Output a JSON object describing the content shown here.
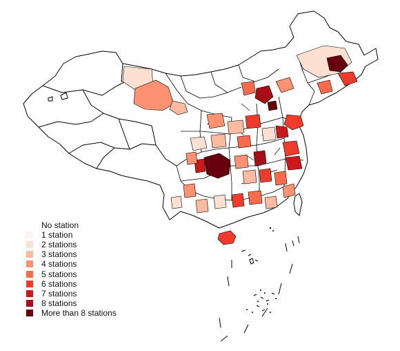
{
  "map": {
    "outline_color": "#000000",
    "background": "#ffffff",
    "legend": {
      "items": [
        {
          "label": "No station",
          "color": "#ffffff"
        },
        {
          "label": "1 station",
          "color": "#fff5f0"
        },
        {
          "label": "2 stations",
          "color": "#fee0d2"
        },
        {
          "label": "3 stations",
          "color": "#fcbba1"
        },
        {
          "label": "4 stations",
          "color": "#fc9272"
        },
        {
          "label": "5 stations",
          "color": "#fb6a4a"
        },
        {
          "label": "6 stations",
          "color": "#ef3b2c"
        },
        {
          "label": "7 stations",
          "color": "#cb181d"
        },
        {
          "label": "8 stations",
          "color": "#a50f15"
        },
        {
          "label": "More than 8 stations",
          "color": "#67000d"
        }
      ]
    }
  }
}
